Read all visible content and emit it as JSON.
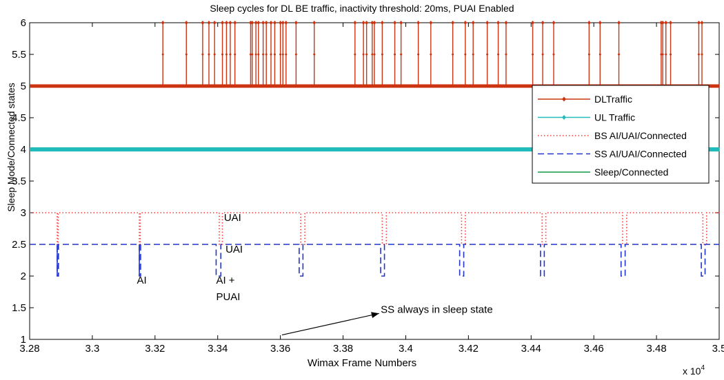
{
  "chart_data": {
    "type": "line",
    "title": "Sleep cycles for DL BE traffic, inactivity threshold: 20ms, PUAI Enabled",
    "xlabel": "Wimax Frame Numbers",
    "ylabel": "Sleep Mode/Connected states",
    "x_multiplier_label": "x 10",
    "x_multiplier_exp": "4",
    "xlim": [
      3.28,
      3.5
    ],
    "ylim": [
      1,
      6
    ],
    "x_ticks": [
      "3.28",
      "3.3",
      "3.32",
      "3.34",
      "3.36",
      "3.38",
      "3.4",
      "3.42",
      "3.44",
      "3.46",
      "3.48",
      "3.5"
    ],
    "x_tick_values": [
      3.28,
      3.3,
      3.32,
      3.34,
      3.36,
      3.38,
      3.4,
      3.42,
      3.44,
      3.46,
      3.48,
      3.5
    ],
    "y_ticks": [
      "1",
      "1.5",
      "2",
      "2.5",
      "3",
      "3.5",
      "4",
      "4.5",
      "5",
      "5.5",
      "6"
    ],
    "y_tick_values": [
      1,
      1.5,
      2,
      2.5,
      3,
      3.5,
      4,
      4.5,
      5,
      5.5,
      6
    ],
    "grid": false,
    "legend_position": "top-right",
    "series": [
      {
        "name": "DLTraffic",
        "color": "#cc3311",
        "style": "solid-marker",
        "baseline": 5,
        "spike_to": 6,
        "spikes_x": [
          3.3225,
          3.33,
          3.3352,
          3.3372,
          3.339,
          3.3415,
          3.3428,
          3.344,
          3.3455,
          3.3505,
          3.351,
          3.3522,
          3.353,
          3.3545,
          3.3555,
          3.357,
          3.3582,
          3.36,
          3.3608,
          3.3618,
          3.365,
          3.3708,
          3.3838,
          3.3865,
          3.3875,
          3.3893,
          3.39,
          3.3925,
          3.3965,
          3.3985,
          3.404,
          3.408,
          3.415,
          3.419,
          3.4215,
          3.426,
          3.4295,
          3.432,
          3.4405,
          3.4437,
          3.4472,
          3.4585,
          3.462,
          3.468,
          3.4815,
          3.482,
          3.483,
          3.4845,
          3.4935,
          3.4945
        ]
      },
      {
        "name": "UL Traffic",
        "color": "#22bbbb",
        "style": "solid-marker",
        "baseline": 4
      },
      {
        "name": "BS AI/UAI/Connected",
        "color": "#ff3333",
        "style": "dotted",
        "baseline": 3,
        "dip_to": 2.5,
        "dips": [
          [
            3.2888,
            3.2891
          ],
          [
            3.315,
            3.3153
          ],
          [
            3.3405,
            3.3415
          ],
          [
            3.3665,
            3.3678
          ],
          [
            3.3925,
            3.3938
          ],
          [
            3.4178,
            3.419
          ],
          [
            3.4435,
            3.4447
          ],
          [
            3.4692,
            3.4705
          ],
          [
            3.4948,
            3.496
          ]
        ]
      },
      {
        "name": "SS AI/UAI/Connected",
        "color": "#2233cc",
        "style": "dashed",
        "baseline": 2.5,
        "dip_to": 2,
        "dips": [
          [
            3.2888,
            3.2892
          ],
          [
            3.315,
            3.3154
          ],
          [
            3.3395,
            3.341
          ],
          [
            3.366,
            3.3672
          ],
          [
            3.392,
            3.3932
          ],
          [
            3.4172,
            3.4185
          ],
          [
            3.443,
            3.4442
          ],
          [
            3.4687,
            3.47
          ],
          [
            3.4943,
            3.4955
          ]
        ]
      },
      {
        "name": "Sleep/Connected",
        "color": "#119944",
        "style": "solid",
        "baseline": 2.5,
        "dip_to": 2,
        "dips": [
          [
            3.2888,
            3.289
          ],
          [
            3.315,
            3.3152
          ]
        ]
      }
    ],
    "annotations": [
      {
        "text": "UAI",
        "x": 3.342,
        "y": 2.87
      },
      {
        "text": "UAI",
        "x": 3.3425,
        "y": 2.37
      },
      {
        "text": "AI",
        "x": 3.3142,
        "y": 1.88
      },
      {
        "text": "AI +",
        "x": 3.3395,
        "y": 1.88
      },
      {
        "text": "PUAI",
        "x": 3.3395,
        "y": 1.62
      },
      {
        "text": "SS always in sleep state",
        "x": 3.392,
        "y": 1.42
      }
    ],
    "arrow": {
      "x1": 3.3605,
      "y1": 1.07,
      "x2": 3.3915,
      "y2": 1.41
    }
  }
}
